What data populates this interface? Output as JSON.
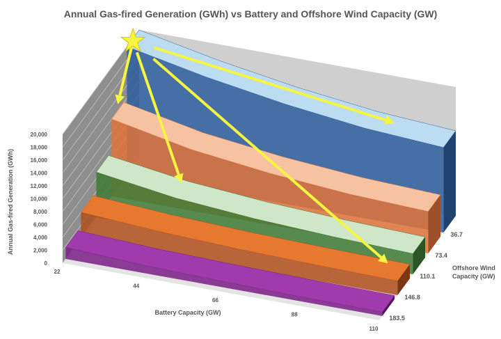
{
  "chart_data": {
    "type": "area-3d",
    "title": "Annual Gas-fired Generation (GWh) vs Battery and Offshore Wind Capacity (GW)",
    "xlabel": "Battery Capacity (GW)",
    "ylabel": "Annual Gas-fired Generation (GWh)",
    "zlabel": "Offshore Wind Capacity (GW)",
    "categories": [
      "22",
      "44",
      "66",
      "88",
      "110"
    ],
    "yticks": [
      "0",
      "2,000",
      "4,000",
      "6,000",
      "8,000",
      "10,000",
      "12,000",
      "14,000",
      "16,000",
      "18,000",
      "20,000"
    ],
    "ylim": [
      0,
      20000
    ],
    "series": [
      {
        "name": "36.7",
        "color": "#2e5f9e",
        "top": "#bcdcf2",
        "values": [
          20000,
          17500,
          15500,
          14000,
          13200
        ]
      },
      {
        "name": "73.4",
        "color": "#e0733a",
        "top": "#f6c2a2",
        "values": [
          12000,
          9500,
          8000,
          7000,
          6500
        ]
      },
      {
        "name": "110.1",
        "color": "#3d7a35",
        "top": "#cfe6c8",
        "values": [
          7000,
          5200,
          4200,
          3600,
          3200
        ]
      },
      {
        "name": "146.8",
        "color": "#b04f1c",
        "top": "#e7782f",
        "values": [
          4000,
          3200,
          2700,
          2400,
          2200
        ]
      },
      {
        "name": "183.5",
        "color": "#7a1f86",
        "top": "#a13aad",
        "values": [
          1800,
          1200,
          900,
          700,
          600
        ]
      }
    ]
  }
}
